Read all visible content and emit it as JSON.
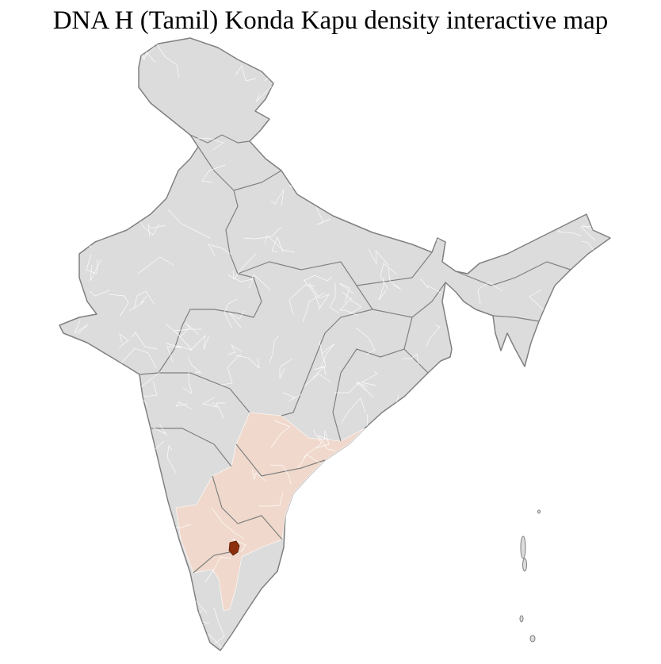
{
  "title": "DNA H (Tamil) Konda Kapu density interactive map",
  "map": {
    "region": "India",
    "level": "districts",
    "colors": {
      "no_data": "#dcdcdc",
      "low_density": "#f0d9cc",
      "high_density": "#8b2f0c",
      "district_border": "#ffffff",
      "state_border": "#808080"
    },
    "highlighted_areas": [
      {
        "name": "Telangana",
        "density": "low"
      },
      {
        "name": "Andhra Pradesh",
        "density": "low"
      },
      {
        "name": "Karnataka (parts)",
        "density": "low"
      },
      {
        "name": "Tamil Nadu (parts)",
        "density": "low"
      },
      {
        "name": "Krishnagiri district area",
        "density": "high"
      }
    ]
  }
}
